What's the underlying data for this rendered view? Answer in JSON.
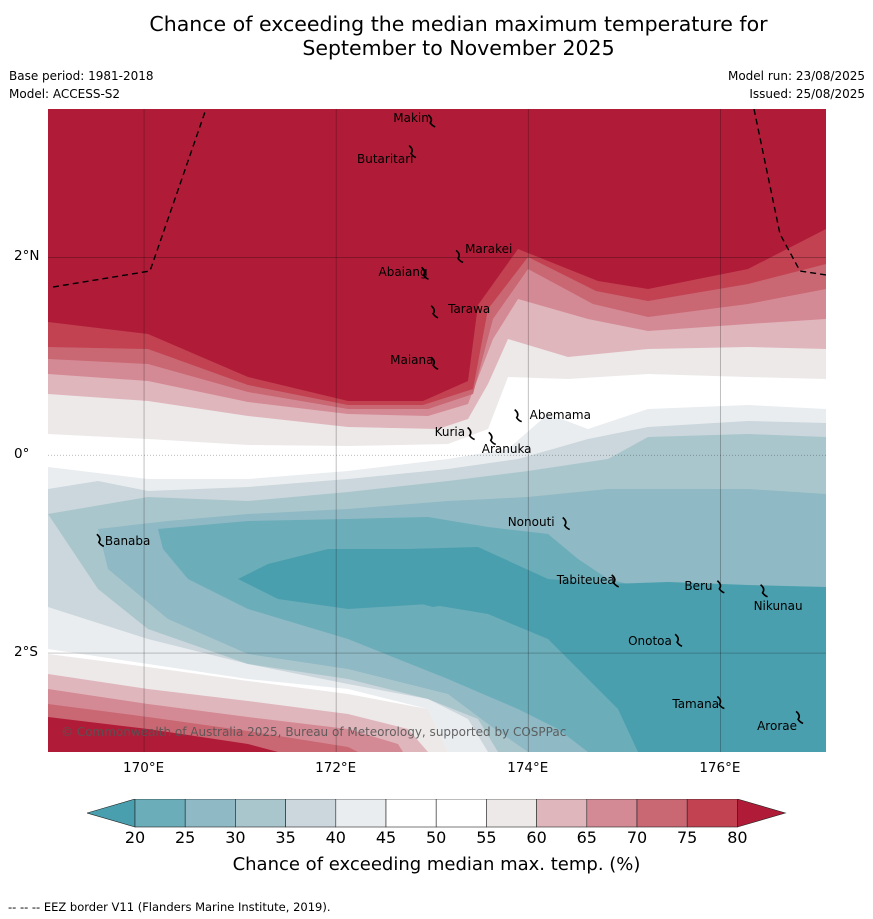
{
  "title_line1": "Chance of exceeding the median maximum temperature for",
  "title_line2": "September to November 2025",
  "meta": {
    "base_period": "Base period: 1981-2018",
    "model": "Model: ACCESS-S2",
    "model_run": "Model run: 23/08/2025",
    "issued": "Issued: 25/08/2025"
  },
  "map": {
    "x_ticks": [
      {
        "value": 170,
        "label": "170°E"
      },
      {
        "value": 172,
        "label": "172°E"
      },
      {
        "value": 174,
        "label": "174°E"
      },
      {
        "value": 176,
        "label": "176°E"
      }
    ],
    "y_ticks": [
      {
        "value": 2,
        "label": "2°N"
      },
      {
        "value": 0,
        "label": "0°"
      },
      {
        "value": -2,
        "label": "2°S"
      }
    ],
    "islands": [
      {
        "name": "Makin",
        "lon": 172.99,
        "lat": 3.38
      },
      {
        "name": "Butaritari",
        "lon": 172.79,
        "lat": 3.07
      },
      {
        "name": "Marakei",
        "lon": 173.28,
        "lat": 2.01
      },
      {
        "name": "Abaiang",
        "lon": 172.92,
        "lat": 1.84
      },
      {
        "name": "Tarawa",
        "lon": 173.02,
        "lat": 1.45
      },
      {
        "name": "Maiana",
        "lon": 173.02,
        "lat": 0.93
      },
      {
        "name": "Abemama",
        "lon": 173.89,
        "lat": 0.4
      },
      {
        "name": "Kuria",
        "lon": 173.4,
        "lat": 0.22
      },
      {
        "name": "Aranuka",
        "lon": 173.62,
        "lat": 0.17
      },
      {
        "name": "Banaba",
        "lon": 169.54,
        "lat": -0.86
      },
      {
        "name": "Nonouti",
        "lon": 174.39,
        "lat": -0.69
      },
      {
        "name": "Tabiteuea",
        "lon": 174.9,
        "lat": -1.27
      },
      {
        "name": "Beru",
        "lon": 176.0,
        "lat": -1.33
      },
      {
        "name": "Nikunau",
        "lon": 176.45,
        "lat": -1.37
      },
      {
        "name": "Onotoa",
        "lon": 175.56,
        "lat": -1.87
      },
      {
        "name": "Tamana",
        "lon": 176.0,
        "lat": -2.5
      },
      {
        "name": "Arorae",
        "lon": 176.82,
        "lat": -2.65
      }
    ],
    "copyright": "© Commonwealth of Australia 2025, Bureau of Meteorology, supported by COSPPac"
  },
  "colorbar": {
    "labels": [
      "20",
      "25",
      "30",
      "35",
      "40",
      "45",
      "50",
      "55",
      "60",
      "65",
      "70",
      "75",
      "80"
    ],
    "title": "Chance of exceeding median max. temp. (%)",
    "colors": {
      "under20": "#4a9fae",
      "20-25": "#6badb9",
      "25-30": "#8fb9c4",
      "30-35": "#a9c6cc",
      "35-40": "#cbd7dc",
      "40-45": "#e9edf0",
      "45-50": "#ffffff",
      "50-55": "#ffffff",
      "55-60": "#ede9e9",
      "60-65": "#e0b6bd",
      "65-70": "#d48a95",
      "70-75": "#c96773",
      "75-80": "#c24252",
      "over80": "#b01c38"
    }
  },
  "footnote": "--  --  -- EEZ border V11 (Flanders Marine Institute, 2019)."
}
